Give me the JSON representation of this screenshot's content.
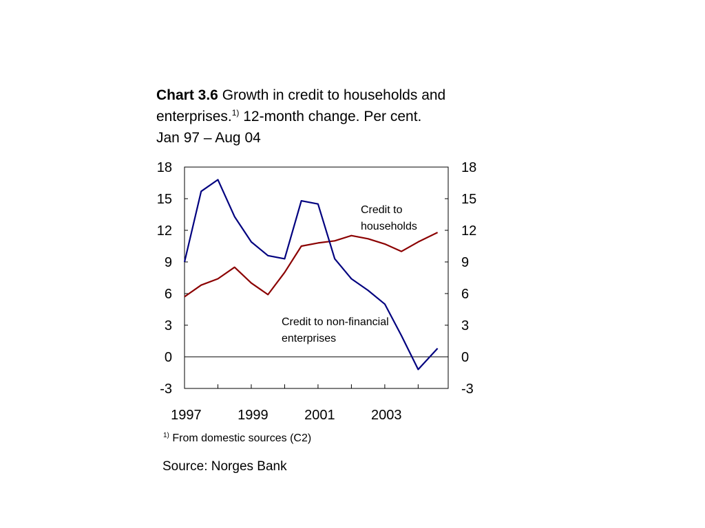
{
  "title": {
    "label": "Chart 3.6",
    "text_line1": " Growth in credit to households and",
    "text_line2_a": "enterprises.",
    "footnote_ref": "1)",
    "text_line2_b": " 12-month change. Per cent.",
    "text_line3": "Jan 97 – Aug 04"
  },
  "footnote": {
    "marker": "1)",
    "text": " From domestic sources (C2)"
  },
  "source": "Source: Norges Bank",
  "colors": {
    "households": "#8B0000",
    "enterprises": "#00007F",
    "axis": "#000000"
  },
  "chart_data": {
    "type": "line",
    "x_start": "1997-01",
    "x_end": "2004-08",
    "x_range": [
      1997.0,
      2004.9
    ],
    "ylim": [
      -3,
      18
    ],
    "yticks": [
      -3,
      0,
      3,
      6,
      9,
      12,
      15,
      18
    ],
    "y_tick_labels": [
      "-3",
      "0",
      "3",
      "6",
      "9",
      "12",
      "15",
      "18"
    ],
    "x_tick_labels": [
      "1997",
      "1999",
      "2001",
      "2003"
    ],
    "x_tick_years": [
      1997,
      1999,
      2001,
      2003
    ],
    "annotations": {
      "households_line1": "Credit to",
      "households_line2": "households",
      "enterprises_line1": "Credit to non-financial",
      "enterprises_line2": "enterprises"
    },
    "series": [
      {
        "key": "households",
        "x": [
          1997.0,
          1997.5,
          1998.0,
          1998.5,
          1999.0,
          1999.5,
          2000.0,
          2000.5,
          2001.0,
          2001.5,
          2002.0,
          2002.5,
          2003.0,
          2003.5,
          2004.0,
          2004.583
        ],
        "values": [
          5.7,
          6.8,
          7.4,
          8.5,
          7.0,
          5.9,
          8.0,
          10.5,
          10.8,
          11.0,
          11.5,
          11.2,
          10.7,
          10.0,
          10.9,
          11.8
        ]
      },
      {
        "key": "enterprises",
        "x": [
          1997.0,
          1997.5,
          1998.0,
          1998.5,
          1999.0,
          1999.5,
          2000.0,
          2000.5,
          2001.0,
          2001.5,
          2002.0,
          2002.5,
          2003.0,
          2003.5,
          2004.0,
          2004.583
        ],
        "values": [
          9.0,
          15.7,
          16.8,
          13.3,
          10.9,
          9.6,
          9.3,
          14.8,
          14.5,
          9.3,
          7.4,
          6.3,
          5.0,
          2.0,
          -1.2,
          0.8
        ]
      }
    ]
  }
}
